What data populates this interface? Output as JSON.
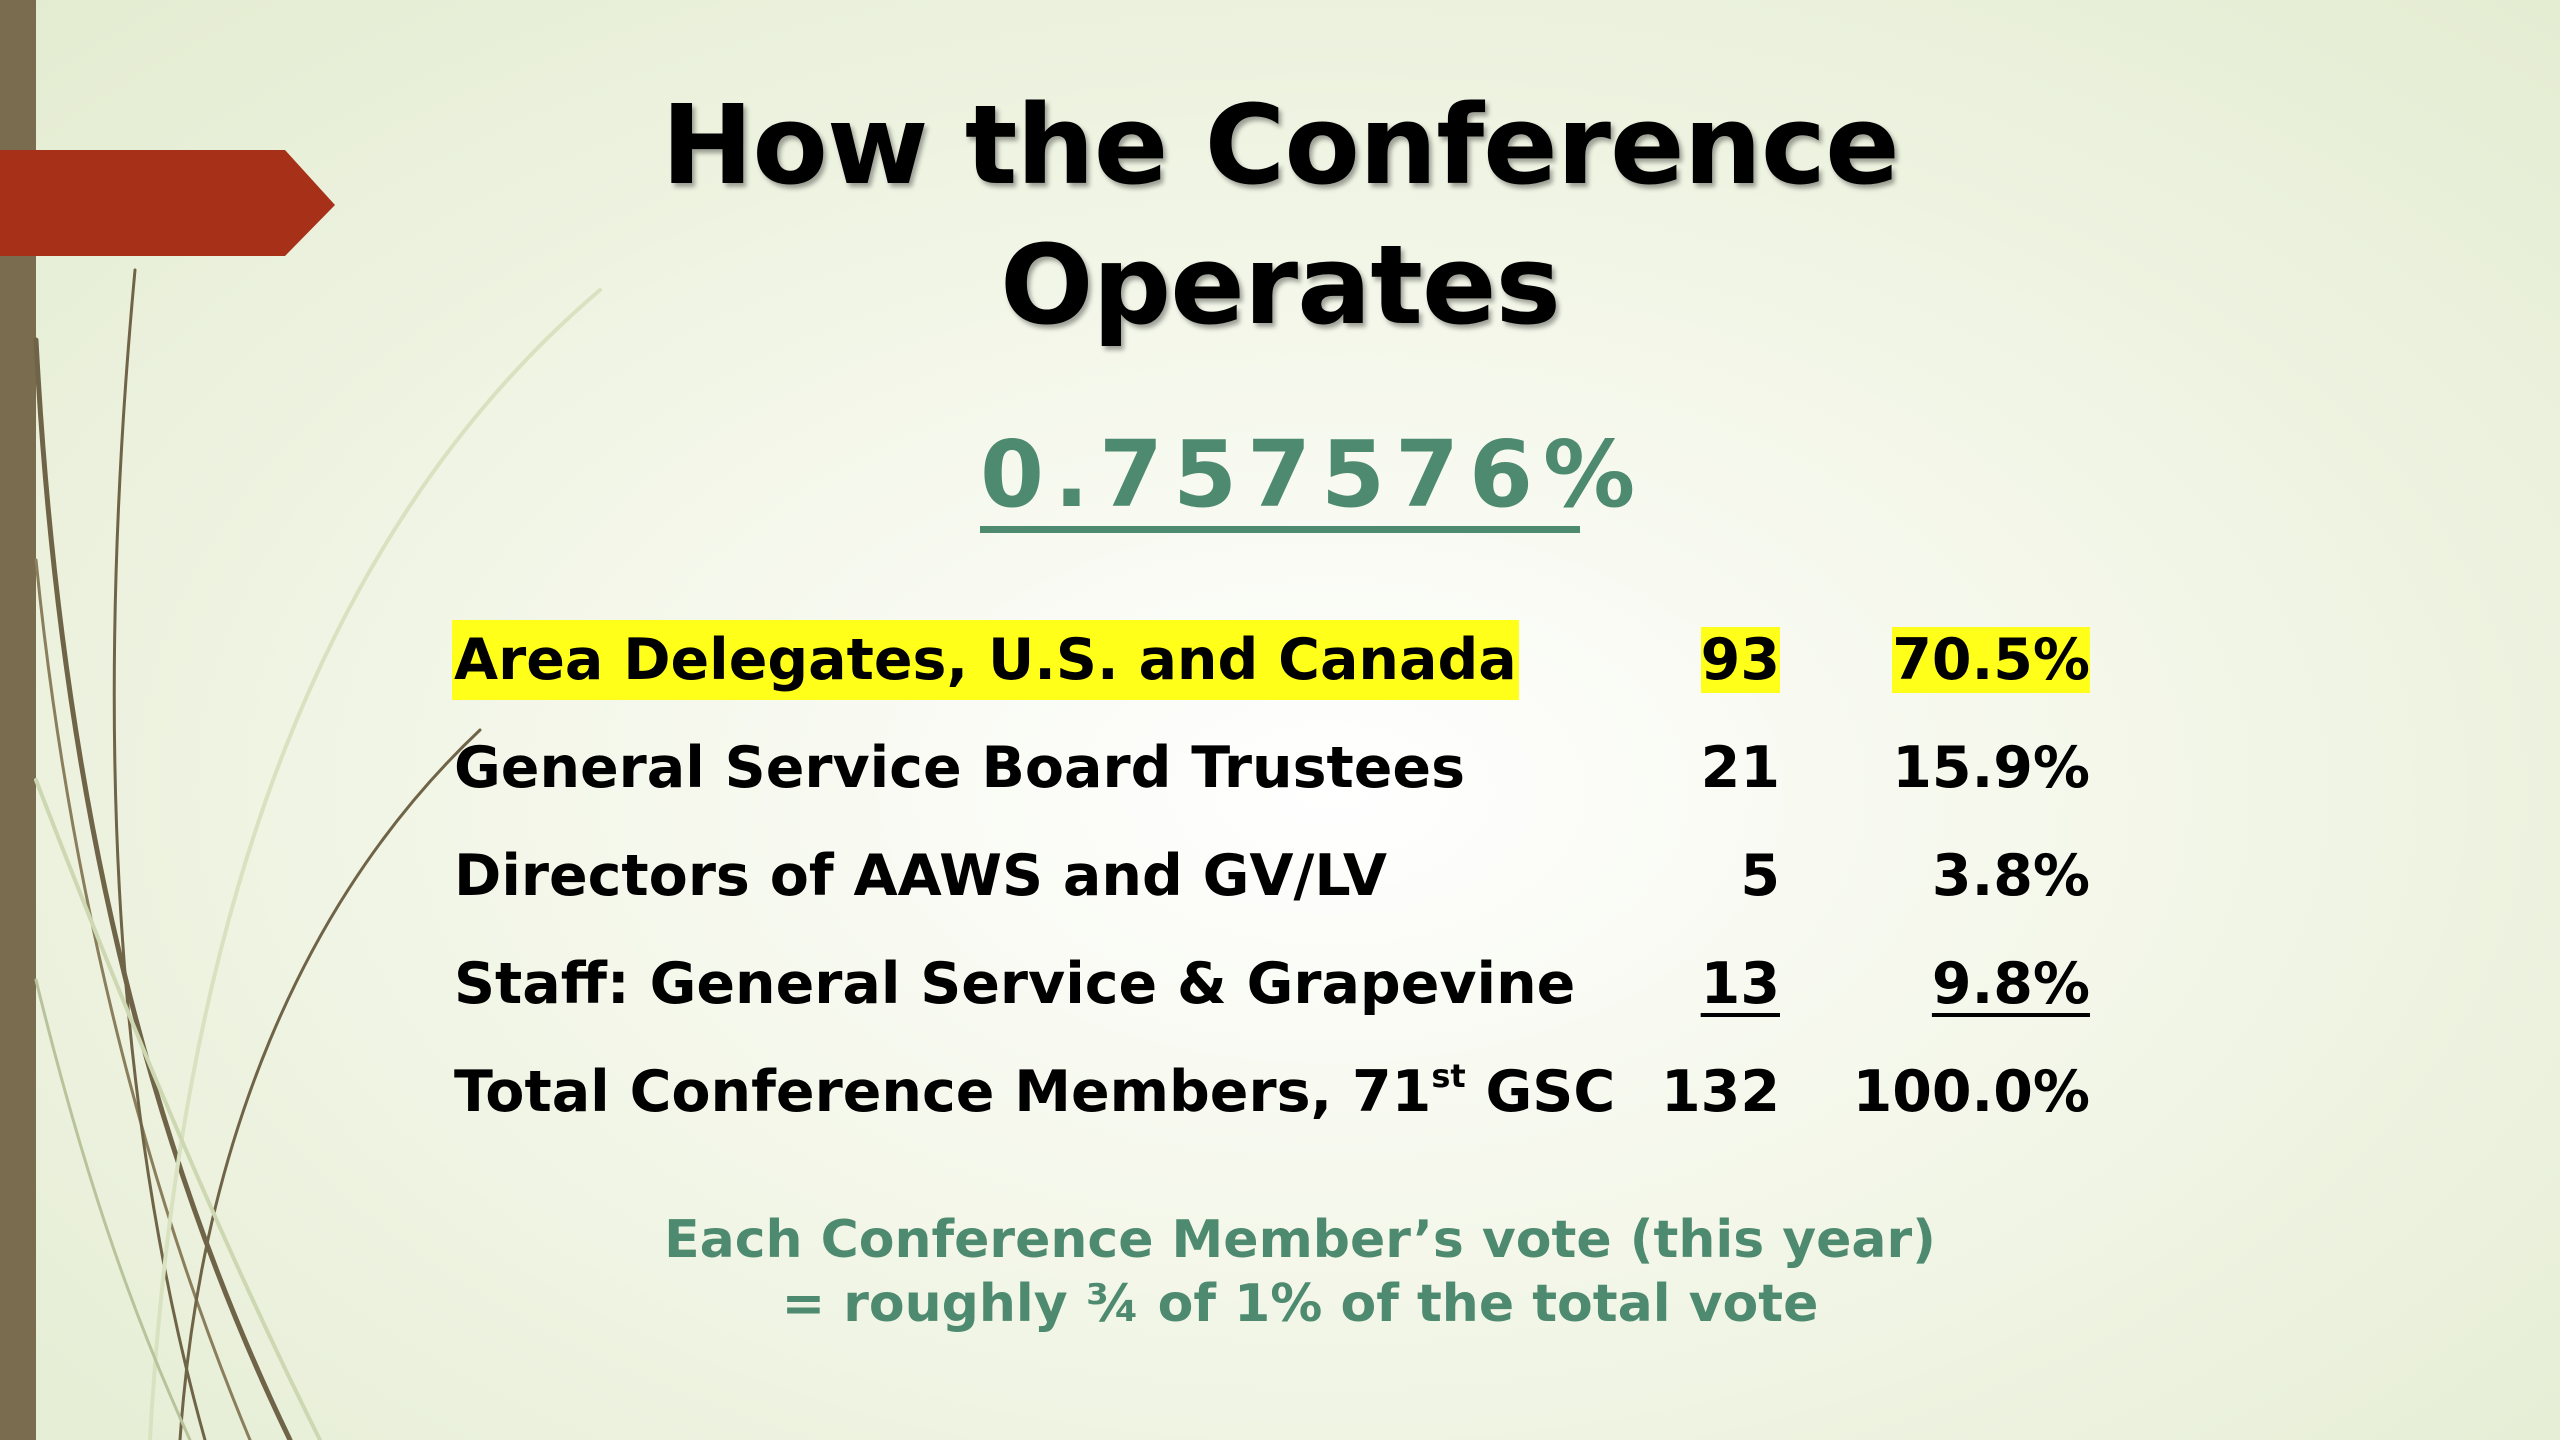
{
  "title": {
    "line1": "How the Conference",
    "line2": "Operates"
  },
  "headline_percent": "0.757576%",
  "rows": [
    {
      "label": "Area Delegates, U.S. and Canada",
      "count": "93",
      "percent": "70.5%",
      "highlighted": true
    },
    {
      "label": "General Service Board Trustees",
      "count": "21",
      "percent": "15.9%"
    },
    {
      "label": "Directors of AAWS and GV/LV",
      "count": "5",
      "percent": "3.8%"
    },
    {
      "label": "Staff: General Service & Grapevine",
      "count": "13",
      "percent": "9.8%",
      "underlined": true
    },
    {
      "label_prefix": "Total Conference Members, 71",
      "label_sup": "st",
      "label_suffix": " GSC",
      "count": "132",
      "percent": "100.0%"
    }
  ],
  "note": {
    "line1": "Each Conference Member’s vote (this year)",
    "line2": "= roughly ¾ of 1% of the total vote"
  },
  "colors": {
    "accent_green": "#4e8a6f",
    "highlight_yellow": "#ffff1a",
    "arrow_red": "#a63118",
    "side_bar": "#7a6c4f"
  }
}
